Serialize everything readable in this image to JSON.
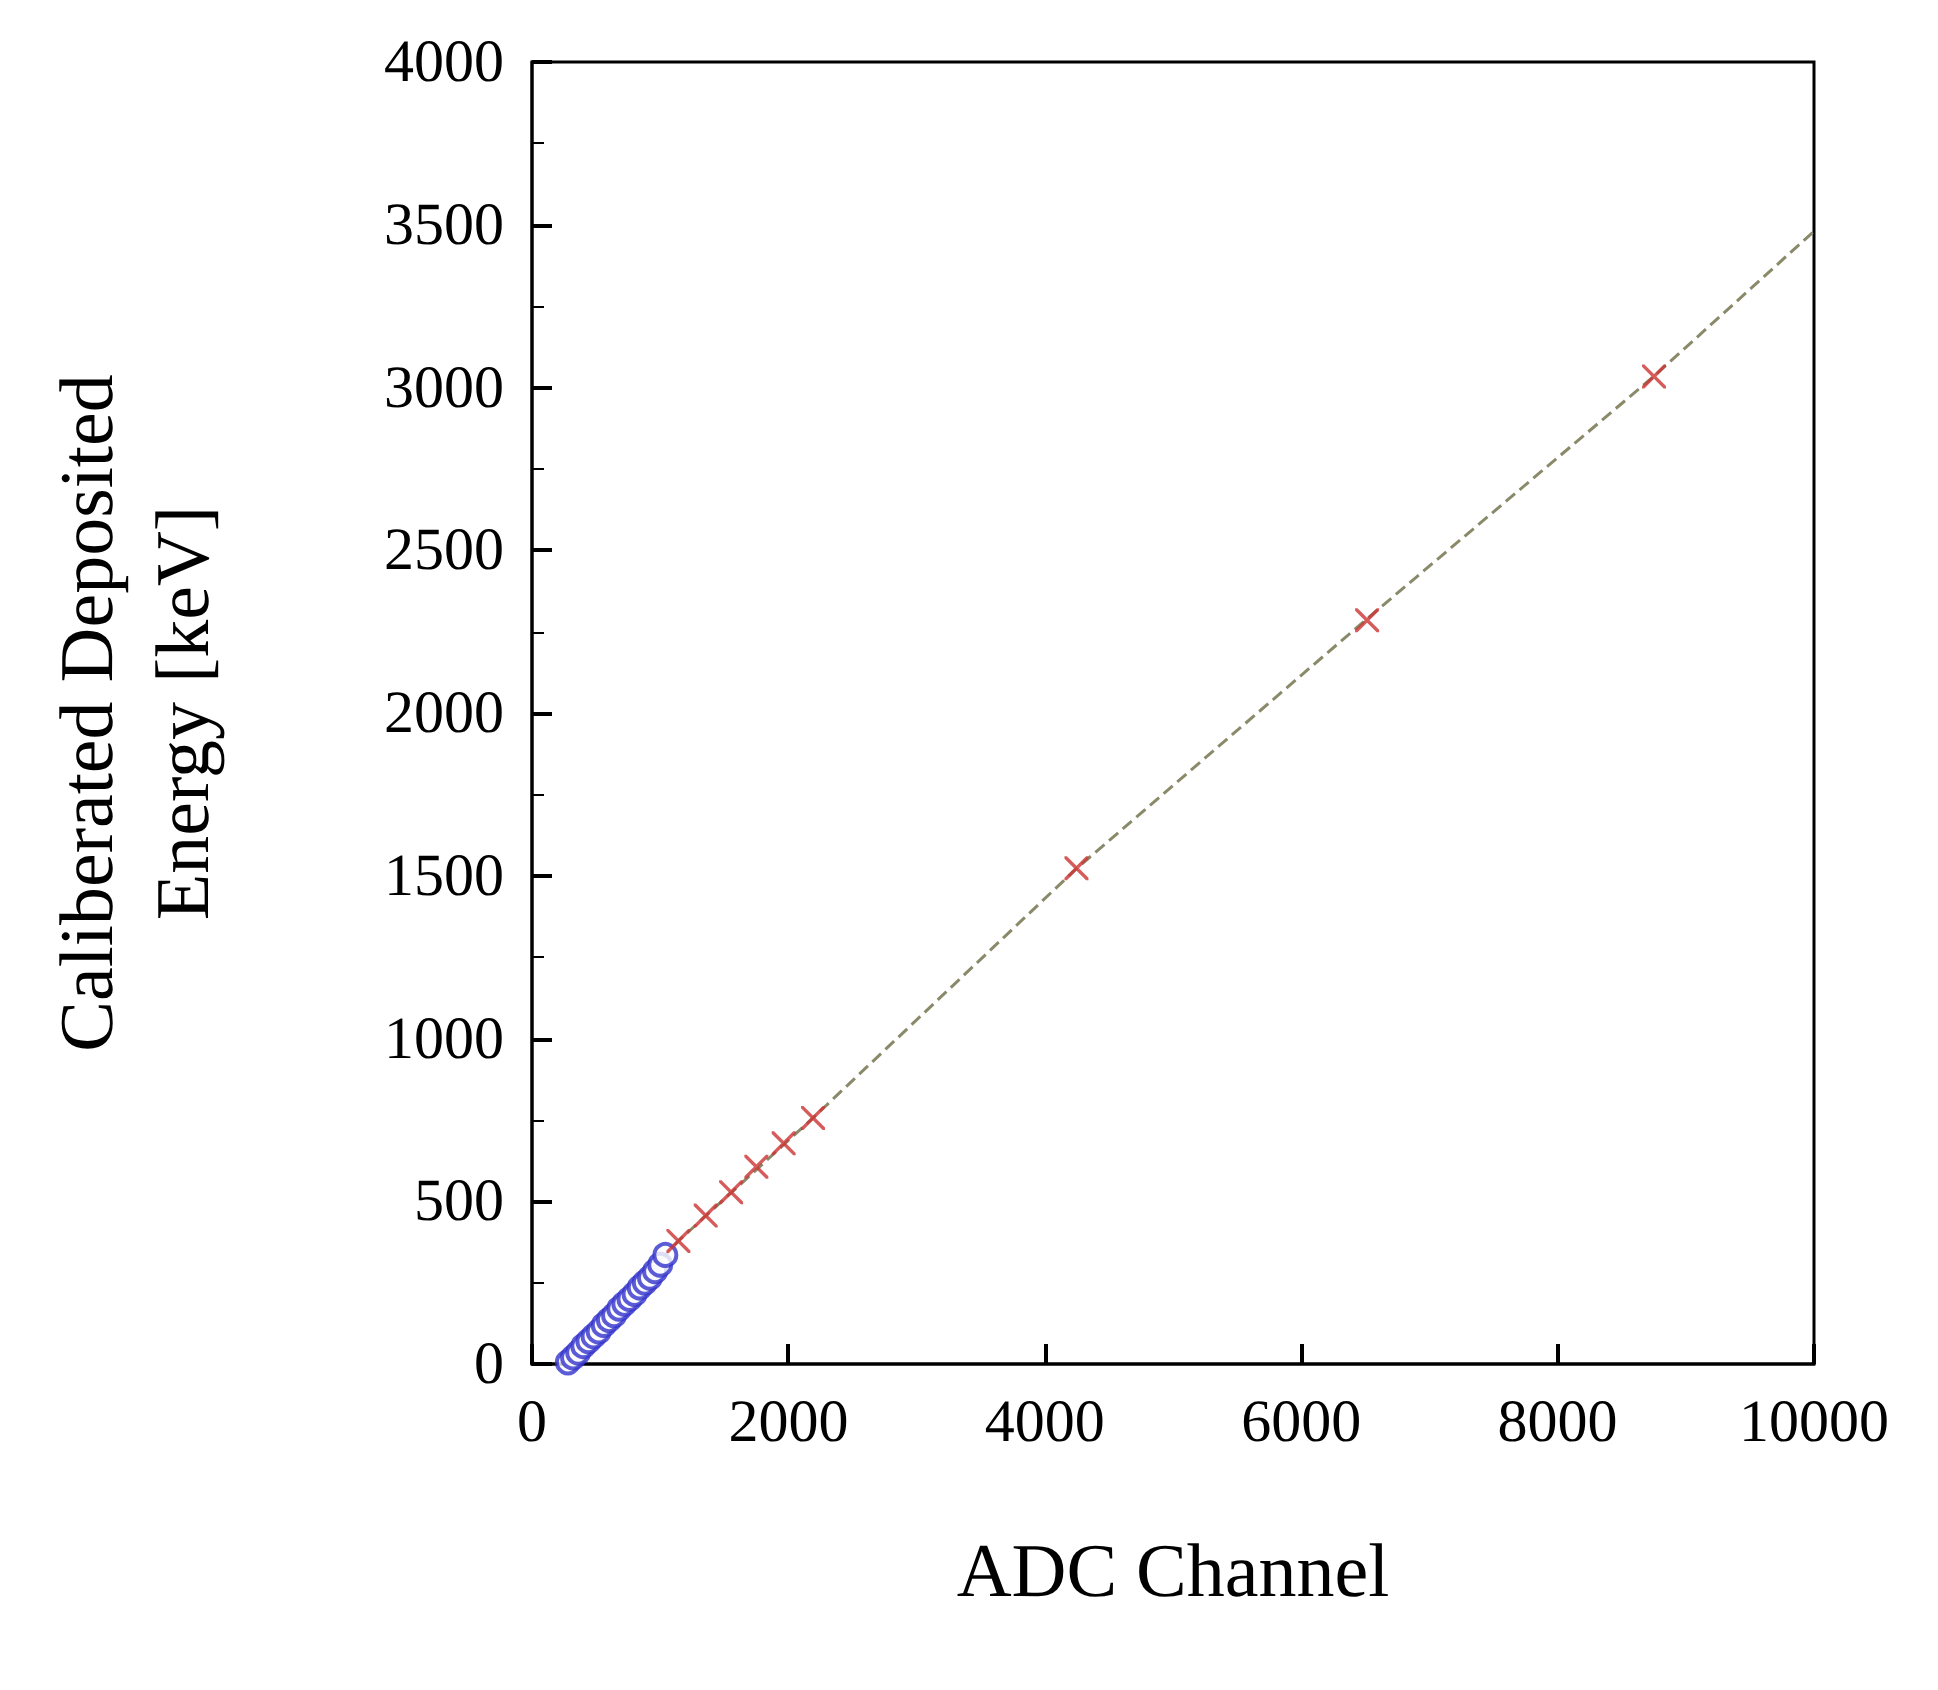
{
  "chart_data": {
    "type": "scatter",
    "xlabel": "ADC Channel",
    "ylabel": "Caliberated Deposited\nEnergy [keV]",
    "xlim": [
      0,
      10000
    ],
    "xticks": [
      0,
      2000,
      4000,
      6000,
      8000,
      10000
    ],
    "ylim": [
      0,
      4000
    ],
    "yticks": [
      0,
      500,
      1000,
      1500,
      2000,
      2500,
      3000,
      3500,
      4000
    ],
    "grid": false,
    "series": [
      {
        "type": "line",
        "color": "#8a8a6a",
        "line_style": "dashed",
        "marker": "none",
        "x": [
          250,
          1142,
          2192,
          4250,
          6500,
          8750,
          10000
        ],
        "values": [
          0,
          378,
          756,
          1523,
          2285,
          3034,
          3480
        ]
      },
      {
        "color": "#3333cc",
        "marker": "circle",
        "x": [
          280,
          320,
          360,
          400,
          440,
          480,
          520,
          560,
          600,
          640,
          680,
          720,
          760,
          800,
          840,
          880,
          920,
          960,
          1000,
          1040
        ],
        "values": [
          5,
          20,
          35,
          55,
          70,
          85,
          100,
          120,
          135,
          150,
          170,
          185,
          200,
          215,
          235,
          250,
          265,
          285,
          305,
          335
        ]
      },
      {
        "color": "#cc3333",
        "marker": "cross",
        "x": [
          1142,
          1355,
          1553,
          1750,
          1963,
          2192,
          4247,
          6514,
          8752
        ],
        "values": [
          378,
          456,
          528,
          606,
          678,
          756,
          1523,
          2285,
          3034
        ]
      }
    ]
  }
}
